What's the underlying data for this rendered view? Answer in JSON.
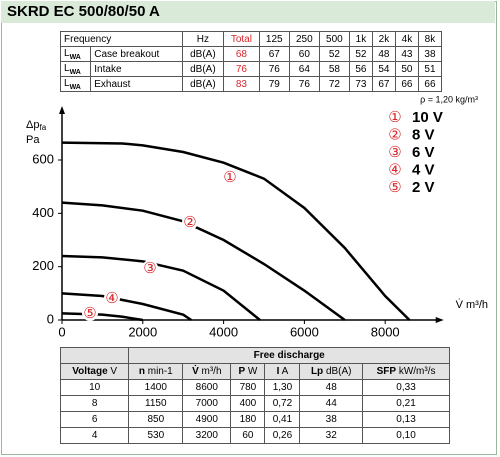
{
  "header": {
    "title": "SKRD EC 500/80/50 A"
  },
  "sound_table": {
    "columns": [
      "Frequency",
      "Hz",
      "Total",
      "125",
      "250",
      "500",
      "1k",
      "2k",
      "4k",
      "8k"
    ],
    "rows": [
      {
        "symbol": "L",
        "sub": "WA",
        "name": "Case breakout",
        "unit": "dB(A)",
        "total": 68,
        "values": [
          67,
          60,
          52,
          52,
          48,
          43,
          38
        ]
      },
      {
        "symbol": "L",
        "sub": "WA",
        "name": "Intake",
        "unit": "dB(A)",
        "total": 76,
        "values": [
          76,
          64,
          58,
          56,
          54,
          50,
          51
        ]
      },
      {
        "symbol": "L",
        "sub": "WA",
        "name": "Exhaust",
        "unit": "dB(A)",
        "total": 83,
        "values": [
          79,
          76,
          72,
          73,
          67,
          66,
          66
        ]
      }
    ]
  },
  "chart_data": {
    "type": "line",
    "ylabel": "Δp",
    "ylabel_sub": "fa",
    "yunit": "Pa",
    "xlabel": "V̇ m³/h",
    "note": "ρ = 1,20 kg/m³",
    "xlim": [
      0,
      9300
    ],
    "xticks": [
      0,
      2000,
      4000,
      6000,
      8000
    ],
    "ylim": [
      0,
      780
    ],
    "yticks": [
      0,
      200,
      400,
      600
    ],
    "series": [
      {
        "name": "10 V",
        "marker": "①",
        "color": "#000000",
        "x": [
          0,
          1500,
          2000,
          3000,
          4000,
          5000,
          6000,
          7000,
          8000,
          8600
        ],
        "values": [
          665,
          662,
          655,
          630,
          590,
          530,
          420,
          270,
          90,
          0
        ]
      },
      {
        "name": "8 V",
        "marker": "②",
        "color": "#000000",
        "x": [
          0,
          1000,
          2000,
          3000,
          4000,
          5000,
          6000,
          7000
        ],
        "values": [
          440,
          430,
          410,
          370,
          300,
          210,
          110,
          0
        ]
      },
      {
        "name": "6 V",
        "marker": "③",
        "color": "#000000",
        "x": [
          0,
          1000,
          2000,
          3000,
          4000,
          4900
        ],
        "values": [
          240,
          235,
          220,
          185,
          110,
          0
        ]
      },
      {
        "name": "4 V",
        "marker": "④",
        "color": "#000000",
        "x": [
          0,
          1000,
          2000,
          3000,
          3200
        ],
        "values": [
          100,
          90,
          60,
          20,
          0
        ]
      },
      {
        "name": "2 V",
        "marker": "⑤",
        "color": "#000000",
        "x": [
          0,
          1000,
          1500,
          2000
        ],
        "values": [
          25,
          20,
          12,
          0
        ]
      }
    ]
  },
  "performance_table": {
    "group": "Free discharge",
    "columns": [
      {
        "sym": "Voltage",
        "unit": "V"
      },
      {
        "sym": "n",
        "unit": "min-1"
      },
      {
        "sym": "V̇",
        "unit": "m³/h"
      },
      {
        "sym": "P",
        "unit": "W"
      },
      {
        "sym": "I",
        "unit": "A"
      },
      {
        "sym": "Lp",
        "unit": "dB(A)"
      },
      {
        "sym": "SFP",
        "unit": "kW/m³/s"
      }
    ],
    "rows": [
      [
        "10",
        "1400",
        "8600",
        "780",
        "1,30",
        "48",
        "0,33"
      ],
      [
        "8",
        "1150",
        "7000",
        "400",
        "0,72",
        "44",
        "0,21"
      ],
      [
        "6",
        "850",
        "4900",
        "180",
        "0,41",
        "38",
        "0,13"
      ],
      [
        "4",
        "530",
        "3200",
        "60",
        "0,26",
        "32",
        "0,10"
      ]
    ]
  }
}
